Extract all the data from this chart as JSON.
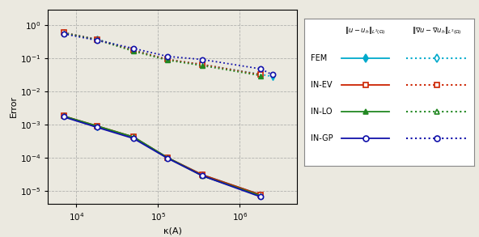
{
  "xlabel": "κ(A)",
  "ylabel": "Error",
  "bg_color": "#ebe9e0",
  "grid_color": "#999999",
  "colors": {
    "FEM": "#00aacc",
    "INEV": "#cc2200",
    "INLO": "#228822",
    "INGP": "#1111aa"
  },
  "kappa_7": [
    7000,
    18000,
    50000,
    130000,
    350000,
    1800000,
    2500000
  ],
  "kappa_6": [
    7000,
    18000,
    50000,
    130000,
    350000,
    1800000
  ],
  "FEM_L2": [
    0.6,
    0.38,
    0.18,
    0.093,
    0.065,
    0.033,
    0.028
  ],
  "INEV_L2": [
    0.6,
    0.37,
    0.175,
    0.093,
    0.065,
    0.032,
    null
  ],
  "INLO_L2": [
    0.58,
    0.36,
    0.165,
    0.088,
    0.06,
    0.03,
    null
  ],
  "INGP_L2": [
    0.55,
    0.35,
    0.2,
    0.115,
    0.092,
    0.048,
    0.032
  ],
  "FEM_H1": [
    0.0018,
    0.00085,
    0.00042,
    0.0001,
    3e-05,
    7.5e-06,
    null
  ],
  "INEV_H1": [
    0.0018,
    0.0009,
    0.00042,
    0.0001,
    3e-05,
    7.5e-06,
    null
  ],
  "INLO_H1": [
    0.0018,
    0.0009,
    0.00042,
    0.0001,
    2.8e-05,
    7e-06,
    null
  ],
  "INGP_H1": [
    0.0017,
    0.00082,
    0.00038,
    9.6e-05,
    2.8e-05,
    6.5e-06,
    null
  ]
}
